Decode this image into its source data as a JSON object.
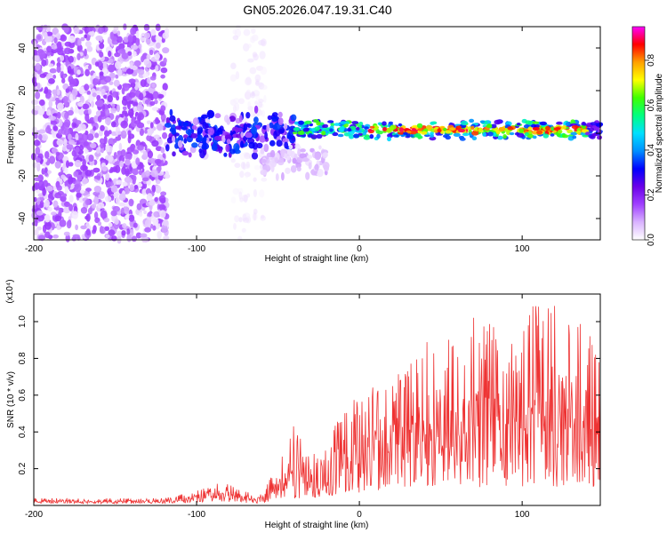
{
  "figure_title": "GN05.2026.047.19.31.C40",
  "chart_data": [
    {
      "type": "heatmap",
      "title": "GN05.2026.047.19.31.C40",
      "xlabel": "Height of straight line (km)",
      "ylabel": "Frequency (Hz)",
      "xlim": [
        -200,
        148
      ],
      "ylim": [
        -50,
        50
      ],
      "xticks": [
        -200,
        -100,
        0,
        100
      ],
      "yticks": [
        -40,
        -20,
        0,
        20,
        40
      ],
      "xtick_labels": [
        "-200",
        "-100",
        "0",
        "100"
      ],
      "ytick_labels": [
        "-40",
        "-20",
        "0",
        "20",
        "40"
      ],
      "colorbar": {
        "label": "Normalized spectral amplitude",
        "range": [
          0,
          0.95
        ],
        "ticks": [
          "0.0",
          "0.2",
          "0.4",
          "0.6",
          "0.8"
        ],
        "tick_values": [
          0.0,
          0.2,
          0.4,
          0.6,
          0.8
        ],
        "colormap": [
          "#ffffff",
          "#d9b3ff",
          "#a040ff",
          "#6a00e8",
          "#0000ff",
          "#0090ff",
          "#00e0ff",
          "#00ff80",
          "#40ff00",
          "#ffff00",
          "#ffa000",
          "#ff0000",
          "#ff00ff"
        ]
      },
      "regions": [
        {
          "name": "diffuse noise",
          "x_range": [
            -200,
            -118
          ],
          "f_range": [
            -50,
            50
          ],
          "amplitude_range": [
            0.02,
            0.1
          ]
        },
        {
          "name": "noise streak",
          "x_range": [
            -78,
            -58
          ],
          "f_range": [
            -50,
            50
          ],
          "amplitude_range": [
            0.01,
            0.04
          ]
        },
        {
          "name": "onset band",
          "x_range": [
            -118,
            -40
          ],
          "f_range": [
            -12,
            12
          ],
          "amplitude_range": [
            0.05,
            0.35
          ]
        },
        {
          "name": "dispersion tail",
          "x_range": [
            -60,
            -20
          ],
          "f_range": [
            -22,
            -5
          ],
          "amplitude_range": [
            0.02,
            0.1
          ]
        },
        {
          "name": "main band",
          "x_range": [
            -40,
            148
          ],
          "f_range": [
            -3,
            6
          ],
          "amplitude_range": [
            0.1,
            0.95
          ]
        }
      ]
    },
    {
      "type": "line",
      "xlabel": "Height of straight line (km)",
      "ylabel": "SNR (10 * v/v)",
      "y_multiplier": "(x10⁴)",
      "xlim": [
        -200,
        148
      ],
      "ylim": [
        0,
        1.15
      ],
      "xticks": [
        -200,
        -100,
        0,
        100
      ],
      "yticks": [
        0.2,
        0.4,
        0.6,
        0.8,
        1.0
      ],
      "xtick_labels": [
        "-200",
        "-100",
        "0",
        "100"
      ],
      "ytick_labels": [
        "0.2",
        "0.4",
        "0.6",
        "0.8",
        "1.0"
      ],
      "series": [
        {
          "name": "SNR",
          "color": "#ee3333",
          "envelope": {
            "x": [
              -200,
              -120,
              -100,
              -90,
              -80,
              -70,
              -60,
              -50,
              -40,
              -30,
              -20,
              -10,
              0,
              10,
              20,
              30,
              40,
              50,
              60,
              70,
              80,
              90,
              100,
              110,
              120,
              130,
              140,
              148
            ],
            "y_min": [
              0.01,
              0.01,
              0.015,
              0.02,
              0.02,
              0.01,
              0.01,
              0.02,
              0.03,
              0.04,
              0.05,
              0.06,
              0.07,
              0.08,
              0.09,
              0.1,
              0.1,
              0.1,
              0.1,
              0.1,
              0.1,
              0.1,
              0.1,
              0.1,
              0.1,
              0.1,
              0.1,
              0.1
            ],
            "y_max": [
              0.04,
              0.04,
              0.08,
              0.12,
              0.12,
              0.08,
              0.07,
              0.22,
              0.45,
              0.32,
              0.4,
              0.5,
              0.62,
              0.66,
              0.72,
              0.75,
              0.9,
              1.03,
              0.82,
              1.03,
              1.04,
              0.85,
              1.03,
              1.12,
              1.1,
              0.97,
              1.0,
              0.78
            ]
          }
        }
      ]
    }
  ]
}
